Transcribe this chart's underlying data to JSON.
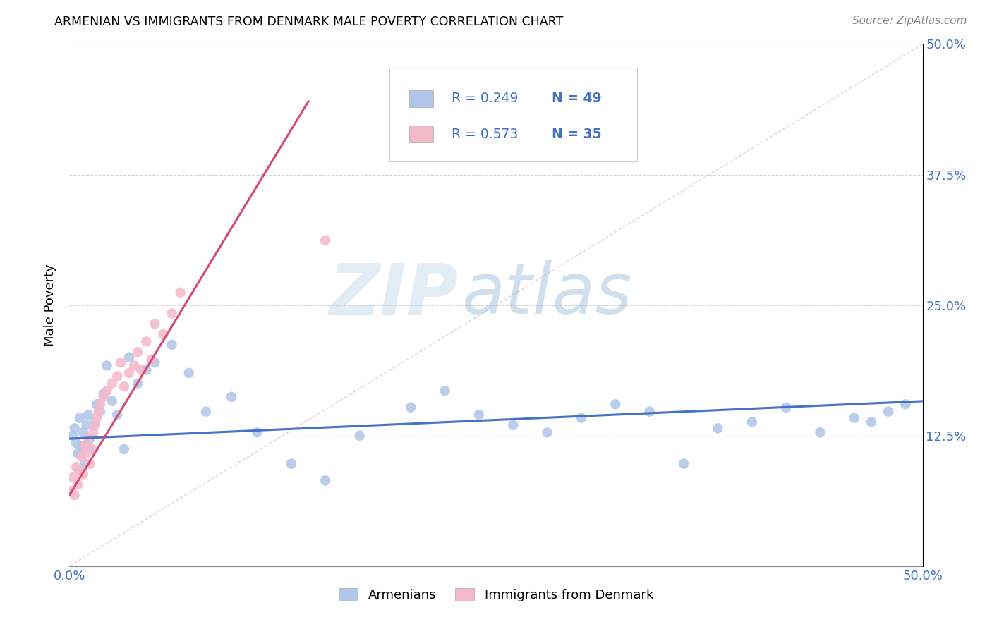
{
  "title": "ARMENIAN VS IMMIGRANTS FROM DENMARK MALE POVERTY CORRELATION CHART",
  "source": "Source: ZipAtlas.com",
  "ylabel": "Male Poverty",
  "xlim": [
    0.0,
    0.5
  ],
  "ylim": [
    0.0,
    0.5
  ],
  "xticks": [
    0.0,
    0.125,
    0.25,
    0.375,
    0.5
  ],
  "yticks": [
    0.0,
    0.125,
    0.25,
    0.375,
    0.5
  ],
  "xticklabels": [
    "0.0%",
    "",
    "",
    "",
    "50.0%"
  ],
  "yticklabels_right": [
    "",
    "12.5%",
    "25.0%",
    "37.5%",
    "50.0%"
  ],
  "legend_r1": "R = 0.249",
  "legend_n1": "N = 49",
  "legend_r2": "R = 0.573",
  "legend_n2": "N = 35",
  "color_armenian": "#aec6e8",
  "color_denmark": "#f4b8cb",
  "color_trend_armenian": "#4472c4",
  "color_trend_denmark": "#d64a6e",
  "color_diagonal": "#d8b0b8",
  "armenian_x": [
    0.002,
    0.003,
    0.004,
    0.005,
    0.006,
    0.007,
    0.008,
    0.009,
    0.01,
    0.011,
    0.012,
    0.013,
    0.015,
    0.016,
    0.018,
    0.02,
    0.022,
    0.025,
    0.028,
    0.032,
    0.035,
    0.04,
    0.045,
    0.05,
    0.06,
    0.07,
    0.08,
    0.095,
    0.11,
    0.13,
    0.15,
    0.17,
    0.2,
    0.22,
    0.24,
    0.26,
    0.28,
    0.3,
    0.32,
    0.34,
    0.36,
    0.38,
    0.4,
    0.42,
    0.44,
    0.46,
    0.47,
    0.48,
    0.49
  ],
  "armenian_y": [
    0.125,
    0.132,
    0.118,
    0.108,
    0.142,
    0.115,
    0.128,
    0.098,
    0.135,
    0.145,
    0.122,
    0.112,
    0.138,
    0.155,
    0.148,
    0.165,
    0.192,
    0.158,
    0.145,
    0.112,
    0.2,
    0.175,
    0.188,
    0.195,
    0.212,
    0.185,
    0.148,
    0.162,
    0.128,
    0.098,
    0.082,
    0.125,
    0.152,
    0.168,
    0.145,
    0.135,
    0.128,
    0.142,
    0.155,
    0.148,
    0.098,
    0.132,
    0.138,
    0.152,
    0.128,
    0.142,
    0.138,
    0.148,
    0.155
  ],
  "denmark_x": [
    0.001,
    0.002,
    0.003,
    0.004,
    0.005,
    0.006,
    0.007,
    0.008,
    0.009,
    0.01,
    0.011,
    0.012,
    0.013,
    0.014,
    0.015,
    0.016,
    0.017,
    0.018,
    0.02,
    0.022,
    0.025,
    0.028,
    0.03,
    0.032,
    0.035,
    0.038,
    0.04,
    0.042,
    0.045,
    0.048,
    0.05,
    0.055,
    0.06,
    0.065,
    0.15
  ],
  "denmark_y": [
    0.072,
    0.085,
    0.068,
    0.095,
    0.078,
    0.092,
    0.105,
    0.088,
    0.115,
    0.108,
    0.122,
    0.098,
    0.112,
    0.128,
    0.135,
    0.142,
    0.148,
    0.155,
    0.162,
    0.168,
    0.175,
    0.182,
    0.195,
    0.172,
    0.185,
    0.192,
    0.205,
    0.188,
    0.215,
    0.198,
    0.232,
    0.222,
    0.242,
    0.262,
    0.312
  ],
  "trend_armenian_x0": 0.0,
  "trend_armenian_x1": 0.5,
  "trend_armenian_y0": 0.122,
  "trend_armenian_y1": 0.158,
  "trend_denmark_x0": 0.0,
  "trend_denmark_x1": 0.14,
  "trend_denmark_y0": 0.068,
  "trend_denmark_y1": 0.445
}
